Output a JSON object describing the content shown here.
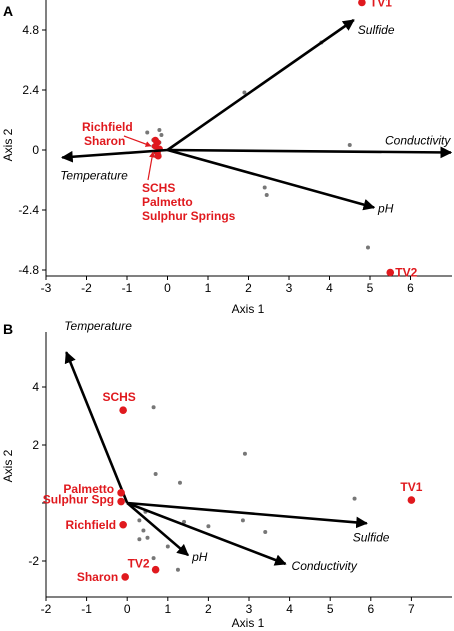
{
  "chart_data": [
    {
      "panel_label": "A",
      "type": "scatter",
      "xlabel": "Axis 1",
      "ylabel": "Axis 2",
      "xlim": [
        -3,
        7
      ],
      "ylim": [
        -5.2,
        6
      ],
      "xticks": [
        -3,
        -2,
        -1,
        0,
        1,
        2,
        3,
        4,
        5,
        6
      ],
      "xtick_labels": [
        "-3",
        "-2",
        "-1",
        "0",
        "1",
        "2",
        "3",
        "4",
        "5",
        "6"
      ],
      "yticks": [
        -4.8,
        -2.4,
        0,
        2.4,
        4.8
      ],
      "ytick_labels": [
        "-4.8",
        "-2.4",
        "0",
        "2.4",
        "4.8"
      ],
      "grid": false,
      "vectors": [
        {
          "label": "Sulfide",
          "x": 4.6,
          "y": 5.2
        },
        {
          "label": "Conductivity",
          "x": 7.0,
          "y": -0.1
        },
        {
          "label": "Temperature",
          "x": -2.6,
          "y": -0.3
        },
        {
          "label": "pH",
          "x": 5.1,
          "y": -2.3
        }
      ],
      "highlighted_sites": [
        {
          "label": "TV1",
          "x": 4.8,
          "y": 5.9
        },
        {
          "label": "TV2",
          "x": 5.5,
          "y": -4.9
        }
      ],
      "cluster_labels": [
        {
          "label": "Richfield"
        },
        {
          "label": "Sharon"
        },
        {
          "label": "SCHS"
        },
        {
          "label": "Palmetto"
        },
        {
          "label": "Sulphur Springs"
        }
      ],
      "cluster_points": [
        {
          "x": -0.3,
          "y": 0.3
        },
        {
          "x": -0.35,
          "y": 0.15
        },
        {
          "x": -0.25,
          "y": 0.05
        },
        {
          "x": -0.3,
          "y": -0.1
        },
        {
          "x": -0.28,
          "y": -0.25
        },
        {
          "x": -0.35,
          "y": 0.4
        }
      ],
      "other_points": [
        {
          "x": 3.8,
          "y": 4.3
        },
        {
          "x": 1.9,
          "y": 2.3
        },
        {
          "x": 4.5,
          "y": 0.2
        },
        {
          "x": 2.4,
          "y": -1.5
        },
        {
          "x": 2.45,
          "y": -1.8
        },
        {
          "x": 4.95,
          "y": -3.9
        },
        {
          "x": -0.5,
          "y": 0.7
        },
        {
          "x": -0.2,
          "y": 0.8
        },
        {
          "x": -0.15,
          "y": 0.6
        },
        {
          "x": -0.2,
          "y": 0.3
        },
        {
          "x": -0.2,
          "y": -0.2
        }
      ],
      "colors": {
        "highlight": "#e0191e",
        "points": "#777777",
        "vectors": "#000000"
      }
    },
    {
      "panel_label": "B",
      "type": "scatter",
      "xlabel": "Axis 1",
      "ylabel": "Axis 2",
      "xlim": [
        -2,
        8
      ],
      "ylim": [
        -3,
        6
      ],
      "xticks": [
        -2,
        -1,
        0,
        1,
        2,
        3,
        4,
        5,
        6,
        7
      ],
      "xtick_labels": [
        "-2",
        "-1",
        "0",
        "1",
        "2",
        "3",
        "4",
        "5",
        "6",
        "7"
      ],
      "yticks": [
        -2,
        0,
        2,
        4
      ],
      "ytick_labels": [
        "-2",
        "",
        "2",
        "4"
      ],
      "grid": false,
      "vectors": [
        {
          "label": "Temperature",
          "x": -1.5,
          "y": 5.2
        },
        {
          "label": "Sulfide",
          "x": 5.9,
          "y": -0.7
        },
        {
          "label": "pH",
          "x": 1.5,
          "y": -1.8
        },
        {
          "label": "Conductivity",
          "x": 3.9,
          "y": -2.1
        }
      ],
      "highlighted_sites": [
        {
          "label": "SCHS",
          "x": -0.1,
          "y": 3.2
        },
        {
          "label": "Palmetto",
          "x": -0.15,
          "y": 0.35
        },
        {
          "label": "Sulphur Spg",
          "x": -0.15,
          "y": 0.05
        },
        {
          "label": "Richfield",
          "x": -0.1,
          "y": -0.75
        },
        {
          "label": "TV1",
          "x": 7.0,
          "y": 0.1
        },
        {
          "label": "TV2",
          "x": 0.7,
          "y": -2.3
        },
        {
          "label": "Sharon",
          "x": -0.05,
          "y": -2.55
        }
      ],
      "other_points": [
        {
          "x": 0.65,
          "y": 3.3
        },
        {
          "x": 2.9,
          "y": 1.7
        },
        {
          "x": 0.7,
          "y": 1.0
        },
        {
          "x": 1.3,
          "y": 0.7
        },
        {
          "x": 5.6,
          "y": 0.15
        },
        {
          "x": 0.45,
          "y": -0.3
        },
        {
          "x": 1.4,
          "y": -0.65
        },
        {
          "x": 2.0,
          "y": -0.8
        },
        {
          "x": 2.85,
          "y": -0.6
        },
        {
          "x": 3.4,
          "y": -1.0
        },
        {
          "x": 0.4,
          "y": -0.95
        },
        {
          "x": 0.3,
          "y": -1.25
        },
        {
          "x": 1.0,
          "y": -1.5
        },
        {
          "x": 0.65,
          "y": -1.9
        },
        {
          "x": 1.25,
          "y": -2.3
        },
        {
          "x": 0.5,
          "y": -1.2
        },
        {
          "x": 0.3,
          "y": -0.6
        }
      ],
      "colors": {
        "highlight": "#e0191e",
        "points": "#777777",
        "vectors": "#000000"
      }
    }
  ]
}
